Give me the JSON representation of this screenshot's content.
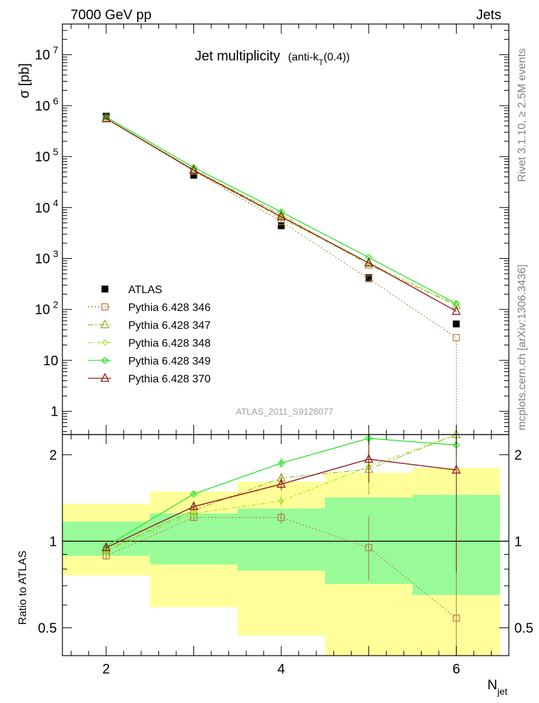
{
  "header": {
    "left": "7000 GeV pp",
    "right": "Jets"
  },
  "main_title": "Jet multiplicity",
  "title_paren": {
    "open": "(anti-k",
    "sub": "T",
    "close": "(0.4))"
  },
  "ylabel_top": "σ [pb]",
  "ylabel_bottom": "Ratio to ATLAS",
  "xlabel": {
    "main": "N",
    "sub": "jet"
  },
  "analysis_id": "ATLAS_2011_S9128077",
  "side_text": {
    "rivet": "Rivet 3.1.10, ≥ 2.5M events",
    "mcplots": "mcplots.cern.ch [arXiv:1306.3436]"
  },
  "top_axis": {
    "yticks": [
      {
        "v": 1,
        "label": "1",
        "exp": ""
      },
      {
        "v": 10,
        "label": "10",
        "exp": ""
      },
      {
        "v": 100,
        "label": "10",
        "exp": "2"
      },
      {
        "v": 1000,
        "label": "10",
        "exp": "3"
      },
      {
        "v": 10000,
        "label": "10",
        "exp": "4"
      },
      {
        "v": 100000,
        "label": "10",
        "exp": "5"
      },
      {
        "v": 1000000,
        "label": "10",
        "exp": "6"
      },
      {
        "v": 10000000,
        "label": "10",
        "exp": "7"
      }
    ]
  },
  "bottom_axis": {
    "yticks": [
      {
        "v": 0.5,
        "label": "0.5"
      },
      {
        "v": 1,
        "label": "1"
      },
      {
        "v": 2,
        "label": "2"
      }
    ],
    "xticks": [
      {
        "v": 2,
        "label": "2"
      },
      {
        "v": 4,
        "label": "4"
      },
      {
        "v": 6,
        "label": "6"
      }
    ]
  },
  "chart_data": {
    "type": "scatter",
    "x": [
      2,
      3,
      4,
      5,
      6
    ],
    "xlim": [
      1.5,
      6.6
    ],
    "ylim": [
      0.35,
      40000000
    ],
    "yscale": "log",
    "ratio_ylim": [
      0.4,
      2.35
    ],
    "ratio_yscale": "log",
    "legend_position": "middle-left",
    "series": [
      {
        "name": "ATLAS",
        "kind": "data",
        "color": "#000000",
        "marker": "square-filled",
        "values": [
          620000,
          43000,
          4400,
          420,
          52
        ],
        "ratio": [
          1,
          1,
          1,
          1,
          1
        ]
      },
      {
        "name": "Pythia 6.428 346",
        "color": "#b07a3c",
        "marker": "square-open",
        "dash": "2,3",
        "values": [
          550000,
          52000,
          5300,
          400,
          28
        ],
        "ratio": [
          0.89,
          1.21,
          1.21,
          0.95,
          0.54
        ],
        "err_low": [
          0.86,
          1.18,
          1.15,
          0.73,
          0.3
        ],
        "err_high": [
          0.92,
          1.24,
          1.27,
          1.22,
          1.1
        ]
      },
      {
        "name": "Pythia 6.428 347",
        "color": "#9aac24",
        "marker": "triangle-open",
        "dash": "8,3,2,3",
        "values": [
          560000,
          55000,
          7200,
          750,
          120
        ],
        "ratio": [
          0.93,
          1.28,
          1.66,
          1.78,
          2.35
        ],
        "err_low": [
          0.91,
          1.26,
          1.6,
          1.45,
          2.2
        ],
        "err_high": [
          0.95,
          1.31,
          1.72,
          2.1,
          2.5
        ]
      },
      {
        "name": "Pythia 6.428 348",
        "color": "#9be41e",
        "marker": "diamond-open",
        "dash": "6,3,2,3",
        "values": [
          550000,
          53000,
          6100,
          800,
          125
        ],
        "ratio": [
          0.92,
          1.25,
          1.38,
          1.82,
          2.45
        ],
        "err_low": [
          0.9,
          1.22,
          1.32,
          1.5,
          2.2
        ],
        "err_high": [
          0.94,
          1.28,
          1.44,
          2.1,
          2.6
        ]
      },
      {
        "name": "Pythia 6.428 349",
        "color": "#36e436",
        "marker": "cross-open",
        "dash": "",
        "values": [
          600000,
          61000,
          8200,
          1050,
          130
        ],
        "ratio": [
          0.96,
          1.46,
          1.87,
          2.28,
          2.16
        ],
        "err_low": [
          0.94,
          1.44,
          1.8,
          2.0,
          1.9
        ],
        "err_high": [
          0.98,
          1.49,
          1.95,
          2.5,
          2.4
        ]
      },
      {
        "name": "Pythia 6.428 370",
        "color": "#8b1a1a",
        "marker": "triangle-open",
        "dash": "",
        "values": [
          560000,
          54000,
          6600,
          820,
          92
        ],
        "ratio": [
          0.95,
          1.32,
          1.58,
          1.93,
          1.77
        ],
        "err_low": [
          0.93,
          1.28,
          1.5,
          1.6,
          0.78
        ],
        "err_high": [
          0.97,
          1.36,
          1.66,
          2.2,
          2.35
        ]
      }
    ],
    "uncertainty_bands": {
      "edges": [
        1.5,
        2.5,
        3.5,
        4.5,
        5.5,
        6.5
      ],
      "stat": {
        "color": "#98fb98",
        "low": [
          0.89,
          0.83,
          0.79,
          0.71,
          0.65
        ],
        "high": [
          1.17,
          1.25,
          1.3,
          1.42,
          1.45
        ]
      },
      "total": {
        "color": "#ffff99",
        "low": [
          0.76,
          0.59,
          0.47,
          0.35,
          0.35
        ],
        "high": [
          1.35,
          1.49,
          1.61,
          1.73,
          1.8
        ]
      }
    }
  }
}
